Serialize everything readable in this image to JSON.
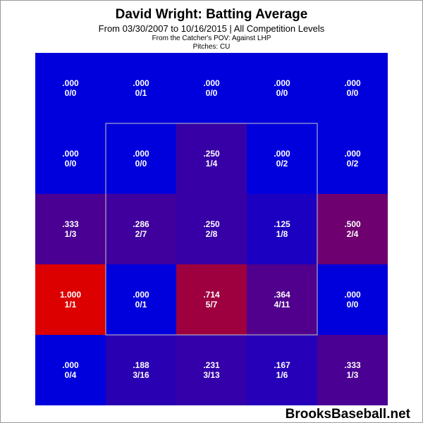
{
  "header": {
    "title": "David Wright: Batting Average",
    "subtitle": "From 03/30/2007 to 10/16/2015 | All Competition Levels",
    "pov_line": "From the Catcher's POV:   Against LHP",
    "pitches_line": "Pitches:  CU"
  },
  "watermark": "BrooksBaseball.net",
  "chart_data": {
    "type": "heatmap",
    "rows": 5,
    "cols": 5,
    "strike_zone": "inner 3x3 cells",
    "color_scale": {
      "low": "#0000dd",
      "high": "#dd0000"
    },
    "cells": [
      [
        {
          "avg": ".000",
          "hits_ab": "0/0",
          "value": 0
        },
        {
          "avg": ".000",
          "hits_ab": "0/1",
          "value": 0
        },
        {
          "avg": ".000",
          "hits_ab": "0/0",
          "value": 0
        },
        {
          "avg": ".000",
          "hits_ab": "0/0",
          "value": 0
        },
        {
          "avg": ".000",
          "hits_ab": "0/0",
          "value": 0
        }
      ],
      [
        {
          "avg": ".000",
          "hits_ab": "0/0",
          "value": 0
        },
        {
          "avg": ".000",
          "hits_ab": "0/0",
          "value": 0
        },
        {
          "avg": ".250",
          "hits_ab": "1/4",
          "value": 0.25
        },
        {
          "avg": ".000",
          "hits_ab": "0/2",
          "value": 0
        },
        {
          "avg": ".000",
          "hits_ab": "0/2",
          "value": 0
        }
      ],
      [
        {
          "avg": ".333",
          "hits_ab": "1/3",
          "value": 0.333
        },
        {
          "avg": ".286",
          "hits_ab": "2/7",
          "value": 0.286
        },
        {
          "avg": ".250",
          "hits_ab": "2/8",
          "value": 0.25
        },
        {
          "avg": ".125",
          "hits_ab": "1/8",
          "value": 0.125
        },
        {
          "avg": ".500",
          "hits_ab": "2/4",
          "value": 0.5
        }
      ],
      [
        {
          "avg": "1.000",
          "hits_ab": "1/1",
          "value": 1.0
        },
        {
          "avg": ".000",
          "hits_ab": "0/1",
          "value": 0
        },
        {
          "avg": ".714",
          "hits_ab": "5/7",
          "value": 0.714
        },
        {
          "avg": ".364",
          "hits_ab": "4/11",
          "value": 0.364
        },
        {
          "avg": ".000",
          "hits_ab": "0/0",
          "value": 0
        }
      ],
      [
        {
          "avg": ".000",
          "hits_ab": "0/4",
          "value": 0
        },
        {
          "avg": ".188",
          "hits_ab": "3/16",
          "value": 0.188
        },
        {
          "avg": ".231",
          "hits_ab": "3/13",
          "value": 0.231
        },
        {
          "avg": ".167",
          "hits_ab": "1/6",
          "value": 0.167
        },
        {
          "avg": ".333",
          "hits_ab": "1/3",
          "value": 0.333
        }
      ]
    ]
  }
}
